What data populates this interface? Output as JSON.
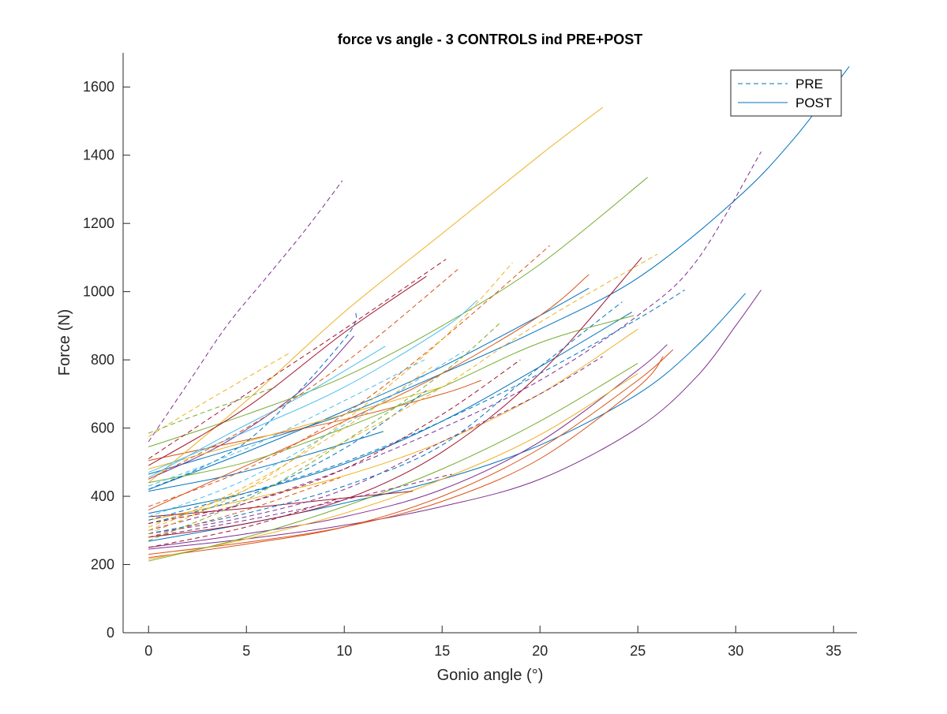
{
  "chart_data": {
    "type": "line",
    "title": "force vs angle - 3 CONTROLS ind PRE+POST",
    "xlabel": "Gonio angle (°)",
    "ylabel": "Force (N)",
    "xlim": [
      -1.3,
      36.2
    ],
    "ylim": [
      0,
      1700
    ],
    "xticks": [
      0,
      5,
      10,
      15,
      20,
      25,
      30,
      35
    ],
    "yticks": [
      0,
      200,
      400,
      600,
      800,
      1000,
      1200,
      1400,
      1600
    ],
    "box": "left-bottom axes only",
    "grid": false,
    "legend": {
      "placement": "top-right",
      "entries": [
        {
          "label": "PRE",
          "style": "dashed",
          "color": "#0072BD"
        },
        {
          "label": "POST",
          "style": "solid",
          "color": "#0072BD"
        }
      ]
    },
    "colors": {
      "blue": "#0072BD",
      "orange": "#D95319",
      "yellow": "#EDB120",
      "purple": "#7E2F8E",
      "green": "#77AC30",
      "cyan": "#4DBEEE",
      "darkred": "#A2142F"
    },
    "series": [
      {
        "style": "solid",
        "color": "#0072BD",
        "x": [
          0,
          5,
          10,
          15,
          20,
          25,
          30,
          33,
          35.8
        ],
        "y": [
          465,
          550,
          640,
          760,
          890,
          1040,
          1270,
          1450,
          1660
        ]
      },
      {
        "style": "solid",
        "color": "#0072BD",
        "x": [
          0,
          5,
          10,
          15,
          20,
          25,
          28,
          30.5
        ],
        "y": [
          268,
          320,
          380,
          450,
          550,
          700,
          840,
          995
        ]
      },
      {
        "style": "solid",
        "color": "#0072BD",
        "x": [
          0,
          5,
          10,
          15,
          20,
          24.7
        ],
        "y": [
          350,
          410,
          495,
          620,
          780,
          940
        ]
      },
      {
        "style": "solid",
        "color": "#0072BD",
        "x": [
          0,
          4,
          8,
          12
        ],
        "y": [
          415,
          460,
          520,
          590
        ]
      },
      {
        "style": "solid",
        "color": "#0072BD",
        "x": [
          0,
          5,
          10,
          15,
          20,
          22.5
        ],
        "y": [
          420,
          530,
          650,
          780,
          930,
          1010
        ]
      },
      {
        "style": "solid",
        "color": "#7E2F8E",
        "x": [
          0,
          5,
          10,
          15,
          20,
          25,
          28,
          30,
          31.3
        ],
        "y": [
          245,
          275,
          315,
          370,
          450,
          600,
          750,
          900,
          1005
        ]
      },
      {
        "style": "solid",
        "color": "#7E2F8E",
        "x": [
          0,
          4,
          8,
          10.5
        ],
        "y": [
          450,
          560,
          720,
          870
        ]
      },
      {
        "style": "solid",
        "color": "#7E2F8E",
        "x": [
          0,
          5,
          10,
          15,
          20,
          25,
          26.5
        ],
        "y": [
          250,
          290,
          340,
          420,
          560,
          770,
          845
        ]
      },
      {
        "style": "solid",
        "color": "#D95319",
        "x": [
          0,
          5,
          10,
          15,
          20,
          25,
          26.8
        ],
        "y": [
          220,
          260,
          310,
          400,
          540,
          740,
          830
        ]
      },
      {
        "style": "solid",
        "color": "#D95319",
        "x": [
          0,
          5,
          10,
          15,
          20,
          22.5
        ],
        "y": [
          360,
          490,
          620,
          760,
          930,
          1050
        ]
      },
      {
        "style": "solid",
        "color": "#D95319",
        "x": [
          0,
          5,
          10,
          15,
          20,
          25,
          26.3
        ],
        "y": [
          230,
          265,
          310,
          385,
          510,
          720,
          810
        ]
      },
      {
        "style": "solid",
        "color": "#D95319",
        "x": [
          0,
          5,
          10,
          15,
          17
        ],
        "y": [
          505,
          565,
          625,
          700,
          740
        ]
      },
      {
        "style": "solid",
        "color": "#EDB120",
        "x": [
          0,
          5,
          10,
          15,
          20,
          23.2
        ],
        "y": [
          440,
          680,
          940,
          1170,
          1400,
          1540
        ]
      },
      {
        "style": "solid",
        "color": "#EDB120",
        "x": [
          0,
          5,
          10,
          15,
          20,
          25
        ],
        "y": [
          330,
          390,
          460,
          560,
          700,
          890
        ]
      },
      {
        "style": "solid",
        "color": "#EDB120",
        "x": [
          0,
          5,
          10,
          15,
          20,
          25
        ],
        "y": [
          215,
          275,
          350,
          450,
          580,
          760
        ]
      },
      {
        "style": "solid",
        "color": "#EDB120",
        "x": [
          0,
          5,
          10,
          15
        ],
        "y": [
          480,
          560,
          640,
          720
        ]
      },
      {
        "style": "solid",
        "color": "#77AC30",
        "x": [
          0,
          5,
          10,
          15,
          20,
          25.5
        ],
        "y": [
          545,
          640,
          750,
          900,
          1080,
          1335
        ]
      },
      {
        "style": "solid",
        "color": "#77AC30",
        "x": [
          0,
          5,
          10,
          15,
          20,
          24.8
        ],
        "y": [
          440,
          500,
          600,
          720,
          850,
          930
        ]
      },
      {
        "style": "solid",
        "color": "#77AC30",
        "x": [
          0,
          5,
          10,
          15,
          20,
          25
        ],
        "y": [
          210,
          280,
          370,
          480,
          620,
          790
        ]
      },
      {
        "style": "solid",
        "color": "#4DBEEE",
        "x": [
          0,
          4,
          8,
          12.1
        ],
        "y": [
          455,
          580,
          700,
          840
        ]
      },
      {
        "style": "solid",
        "color": "#4DBEEE",
        "x": [
          0,
          5,
          10,
          15,
          16.8
        ],
        "y": [
          470,
          590,
          720,
          890,
          975
        ]
      },
      {
        "style": "solid",
        "color": "#A2142F",
        "x": [
          0,
          5,
          10,
          14.2
        ],
        "y": [
          490,
          660,
          880,
          1045
        ]
      },
      {
        "style": "solid",
        "color": "#A2142F",
        "x": [
          0,
          5,
          10,
          13.5
        ],
        "y": [
          340,
          365,
          395,
          415
        ]
      },
      {
        "style": "solid",
        "color": "#A2142F",
        "x": [
          0,
          5,
          10,
          15,
          20,
          25.2
        ],
        "y": [
          280,
          320,
          390,
          530,
          760,
          1100
        ]
      },
      {
        "style": "dashed",
        "color": "#7E2F8E",
        "x": [
          0,
          2,
          4,
          6,
          8,
          9.9
        ],
        "y": [
          560,
          730,
          900,
          1040,
          1180,
          1325
        ]
      },
      {
        "style": "dashed",
        "color": "#7E2F8E",
        "x": [
          0,
          5,
          10,
          15,
          20,
          25,
          28,
          31.3
        ],
        "y": [
          300,
          380,
          480,
          600,
          740,
          930,
          1090,
          1410
        ]
      },
      {
        "style": "dashed",
        "color": "#7E2F8E",
        "x": [
          0,
          5,
          10,
          15,
          20,
          23.2
        ],
        "y": [
          290,
          340,
          420,
          560,
          700,
          810
        ]
      },
      {
        "style": "dashed",
        "color": "#7E2F8E",
        "x": [
          0,
          5,
          10,
          15.5
        ],
        "y": [
          280,
          330,
          390,
          465
        ]
      },
      {
        "style": "dashed",
        "color": "#0072BD",
        "x": [
          0,
          5,
          10,
          15,
          20,
          25,
          27.4
        ],
        "y": [
          330,
          410,
          500,
          620,
          760,
          920,
          1005
        ]
      },
      {
        "style": "dashed",
        "color": "#0072BD",
        "x": [
          0,
          5,
          10,
          15,
          20,
          24.2
        ],
        "y": [
          290,
          350,
          430,
          550,
          780,
          970
        ]
      },
      {
        "style": "dashed",
        "color": "#0072BD",
        "x": [
          0,
          5,
          10,
          10.6
        ],
        "y": [
          420,
          560,
          860,
          945
        ]
      },
      {
        "style": "dashed",
        "color": "#0072BD",
        "x": [
          0,
          5,
          10,
          14.2
        ],
        "y": [
          320,
          400,
          540,
          710
        ]
      },
      {
        "style": "dashed",
        "color": "#D95319",
        "x": [
          0,
          5,
          10,
          15,
          20.5
        ],
        "y": [
          370,
          480,
          640,
          860,
          1135
        ]
      },
      {
        "style": "dashed",
        "color": "#D95319",
        "x": [
          0,
          5,
          10,
          15.8
        ],
        "y": [
          450,
          600,
          790,
          1065
        ]
      },
      {
        "style": "dashed",
        "color": "#D95319",
        "x": [
          0,
          5,
          9.8
        ],
        "y": [
          280,
          360,
          455
        ]
      },
      {
        "style": "dashed",
        "color": "#EDB120",
        "x": [
          0,
          5,
          10,
          15,
          18.6
        ],
        "y": [
          290,
          420,
          620,
          860,
          1085
        ]
      },
      {
        "style": "dashed",
        "color": "#EDB120",
        "x": [
          0,
          3,
          7.2
        ],
        "y": [
          575,
          680,
          820
        ]
      },
      {
        "style": "dashed",
        "color": "#EDB120",
        "x": [
          0,
          5,
          10,
          15,
          20,
          26
        ],
        "y": [
          310,
          420,
          560,
          720,
          910,
          1110
        ]
      },
      {
        "style": "dashed",
        "color": "#EDB120",
        "x": [
          0,
          5,
          10,
          14.5
        ],
        "y": [
          300,
          430,
          600,
          780
        ]
      },
      {
        "style": "dashed",
        "color": "#77AC30",
        "x": [
          0,
          5,
          10,
          15,
          18
        ],
        "y": [
          270,
          390,
          560,
          760,
          910
        ]
      },
      {
        "style": "dashed",
        "color": "#77AC30",
        "x": [
          0,
          3,
          6.5
        ],
        "y": [
          585,
          650,
          720
        ]
      },
      {
        "style": "dashed",
        "color": "#4DBEEE",
        "x": [
          0,
          5,
          10,
          16.1
        ],
        "y": [
          340,
          450,
          610,
          825
        ]
      },
      {
        "style": "dashed",
        "color": "#4DBEEE",
        "x": [
          0,
          5,
          10,
          14.1
        ],
        "y": [
          430,
          540,
          680,
          800
        ]
      },
      {
        "style": "dashed",
        "color": "#A2142F",
        "x": [
          0,
          5,
          10,
          15.2
        ],
        "y": [
          510,
          700,
          890,
          1095
        ]
      },
      {
        "style": "dashed",
        "color": "#A2142F",
        "x": [
          0,
          5,
          10,
          15,
          19
        ],
        "y": [
          320,
          380,
          480,
          640,
          800
        ]
      },
      {
        "style": "dashed",
        "color": "#A2142F",
        "x": [
          0,
          5,
          9.8
        ],
        "y": [
          250,
          310,
          395
        ]
      }
    ]
  }
}
